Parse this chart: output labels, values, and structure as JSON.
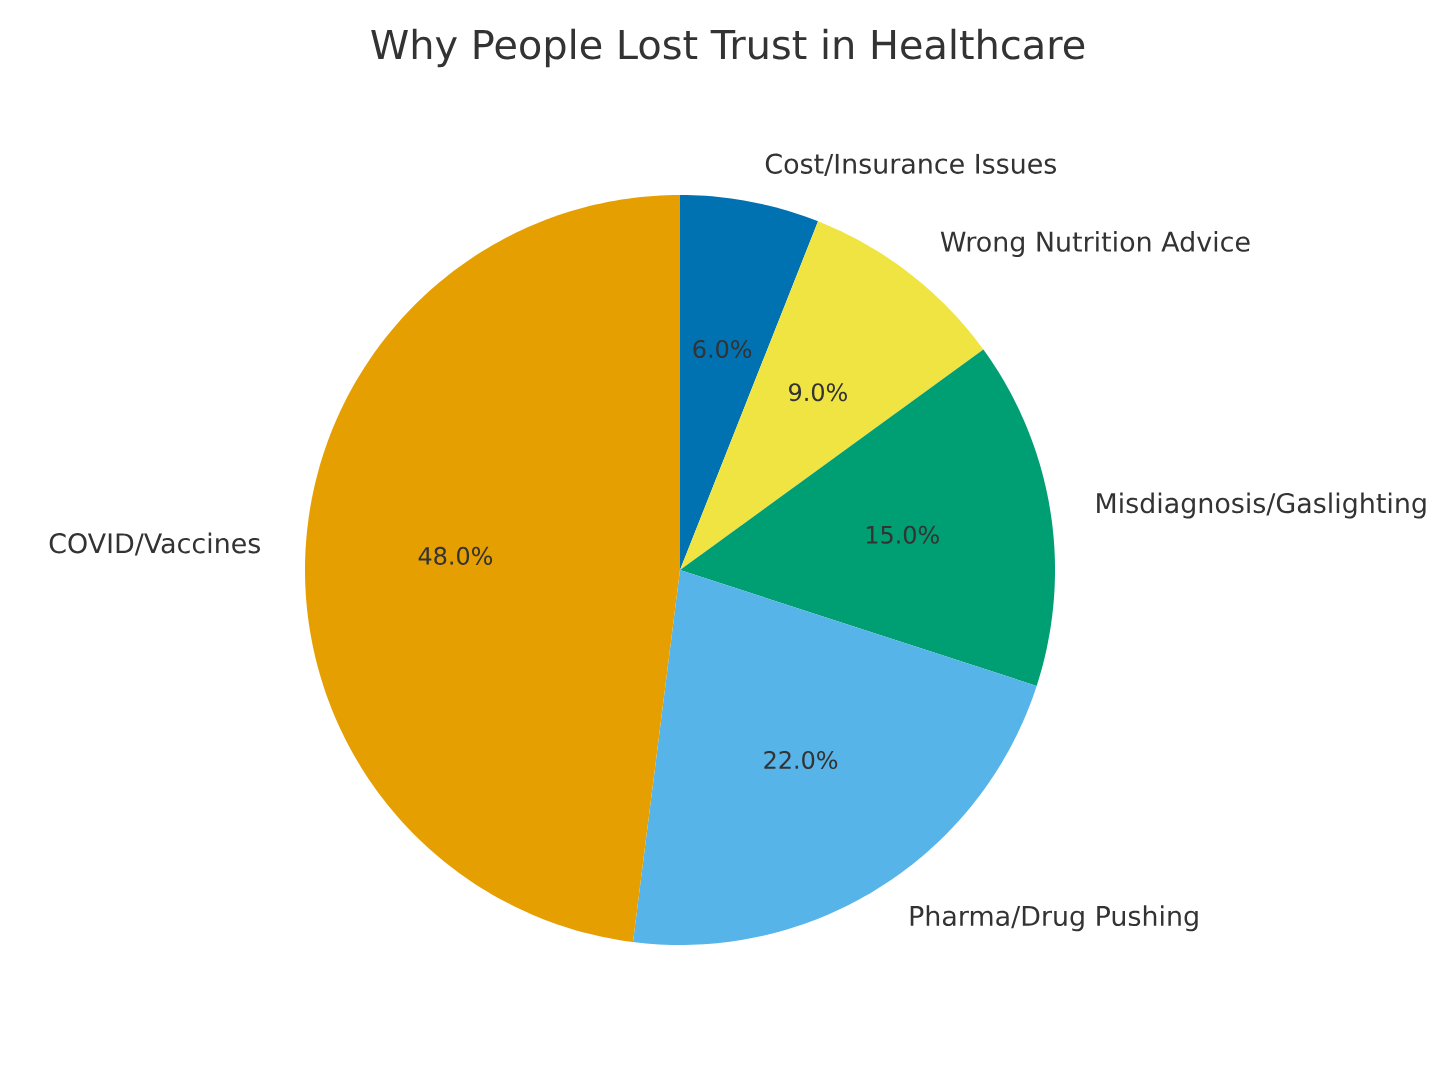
{
  "chart_data": {
    "type": "pie",
    "title": "Why People Lost Trust in Healthcare",
    "categories": [
      "Cost/Insurance Issues",
      "Wrong Nutrition Advice",
      "Misdiagnosis/Gaslighting",
      "Pharma/Drug Pushing",
      "COVID/Vaccines"
    ],
    "values": [
      6,
      9,
      15,
      22,
      48
    ],
    "colors": [
      "#0072b2",
      "#f0e442",
      "#009e73",
      "#56b4e9",
      "#e69f00"
    ],
    "value_labels": [
      "6.0%",
      "9.0%",
      "15.0%",
      "22.0%",
      "48.0%"
    ]
  }
}
